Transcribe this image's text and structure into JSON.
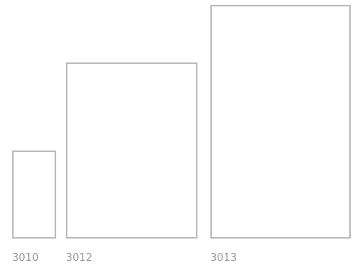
{
  "items": [
    {
      "label": "3010",
      "relative_size": 0.37
    },
    {
      "label": "3012",
      "relative_size": 0.75
    },
    {
      "label": "3013",
      "relative_size": 1.0
    }
  ],
  "colors": {
    "border": "#bdbdbd",
    "label": "#9a9a9a",
    "background": "#ffffff"
  }
}
